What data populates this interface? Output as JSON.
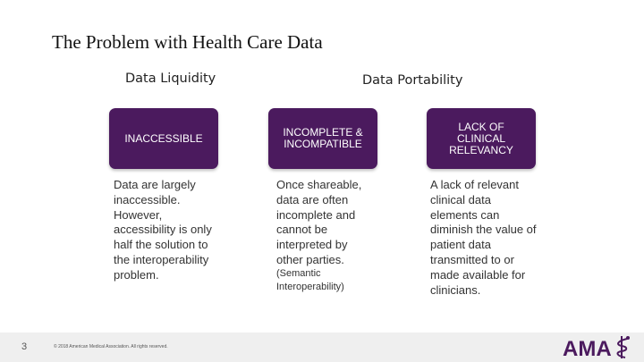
{
  "title": "The Problem with Health Care Data",
  "columns": {
    "liquidity_heading": "Data Liquidity",
    "portability_heading": "Data Portability"
  },
  "boxes": [
    {
      "label": "INACCESSIBLE"
    },
    {
      "label": "INCOMPLETE &\nINCOMPATIBLE"
    },
    {
      "label": "LACK OF\nCLINICAL\nRELEVANCY"
    }
  ],
  "descriptions": [
    "Data are largely\ninaccessible.\nHowever,\naccessibility is only\nhalf the solution to\nthe interoperability\nproblem.",
    "Once shareable,\ndata are often\nincomplete and\ncannot be\ninterpreted by\nother parties.",
    "A lack of relevant\nclinical data\nelements can\ndiminish the value of\npatient data\ntransmitted to or\nmade available for\nclinicians."
  ],
  "note": "(Semantic\nInteroperability)",
  "footer": {
    "slide_number": "3",
    "copyright": "© 2018 American Medical Association. All rights reserved.",
    "logo_text": "AMA",
    "logo_icon": "staff-of-asclepius-icon"
  },
  "colors": {
    "box_purple": "#4b1a5e",
    "logo_purple": "#4b1a5e",
    "footer_bg": "#efefef"
  }
}
